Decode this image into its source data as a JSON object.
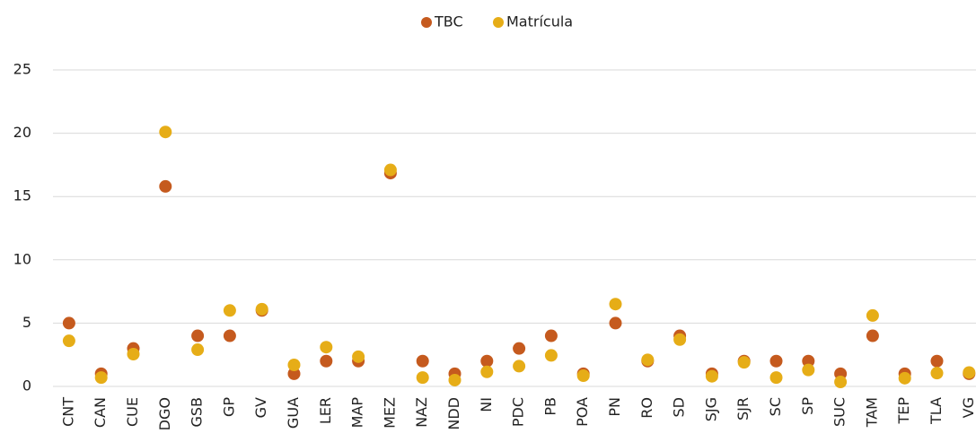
{
  "chart_data": {
    "type": "scatter",
    "categories": [
      "CNT",
      "CAN",
      "CUE",
      "DGO",
      "GSB",
      "GP",
      "GV",
      "GUA",
      "LER",
      "MAP",
      "MEZ",
      "NAZ",
      "NDD",
      "NI",
      "PDC",
      "PB",
      "POA",
      "PN",
      "RO",
      "SD",
      "SJG",
      "SJR",
      "SC",
      "SP",
      "SUC",
      "TAM",
      "TEP",
      "TLA",
      "VG"
    ],
    "series": [
      {
        "name": "TBC",
        "color": "#c55a1e",
        "values": [
          5,
          1,
          3,
          15.8,
          4,
          4,
          6,
          1,
          2,
          2,
          16.85,
          2,
          1,
          2,
          3,
          4,
          1,
          5,
          2,
          4,
          1,
          2,
          2,
          2,
          1,
          4,
          1,
          2,
          1
        ]
      },
      {
        "name": "Matrícula",
        "color": "#e6ad17",
        "values": [
          3.6,
          0.7,
          2.55,
          20.1,
          2.9,
          6,
          6.1,
          1.7,
          3.1,
          2.35,
          17.1,
          0.7,
          0.5,
          1.15,
          1.6,
          2.45,
          0.85,
          6.5,
          2.1,
          3.7,
          0.8,
          1.9,
          0.7,
          1.3,
          0.35,
          5.6,
          0.65,
          1.05,
          1.1
        ]
      }
    ],
    "ylim": [
      0,
      25
    ],
    "yticks": [
      0,
      5,
      10,
      15,
      20,
      25
    ],
    "grid": true,
    "legend": "top"
  }
}
